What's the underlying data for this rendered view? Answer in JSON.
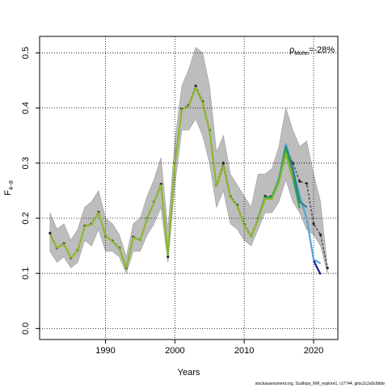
{
  "chart_data": {
    "type": "line",
    "xlabel": "Years",
    "ylabel_main": "F",
    "ylabel_sub": "4−8",
    "xlim": [
      1980.5,
      2023.5
    ],
    "ylim": [
      -0.02,
      0.53
    ],
    "xticks": [
      1990,
      2000,
      2010,
      2020
    ],
    "yticks": [
      0.0,
      0.1,
      0.2,
      0.3,
      0.4,
      0.5
    ],
    "ytick_labels": [
      "0.0",
      "0.1",
      "0.2",
      "0.3",
      "0.4",
      "0.5"
    ],
    "grid": "dotted",
    "annotation": {
      "rho_symbol": "ρ",
      "rho_sub": "Mohn",
      "rho_value": "=-28%"
    },
    "confidence_band": {
      "x": [
        1982,
        1983,
        1984,
        1985,
        1986,
        1987,
        1988,
        1989,
        1990,
        1991,
        1992,
        1993,
        1994,
        1995,
        1996,
        1997,
        1998,
        1999,
        2000,
        2001,
        2002,
        2003,
        2004,
        2005,
        2006,
        2007,
        2008,
        2009,
        2010,
        2011,
        2012,
        2013,
        2014,
        2015,
        2016,
        2017,
        2018,
        2019,
        2020,
        2021,
        2022
      ],
      "lower": [
        0.14,
        0.12,
        0.13,
        0.11,
        0.12,
        0.16,
        0.15,
        0.18,
        0.14,
        0.14,
        0.13,
        0.1,
        0.14,
        0.14,
        0.17,
        0.19,
        0.22,
        0.12,
        0.26,
        0.36,
        0.36,
        0.38,
        0.35,
        0.3,
        0.22,
        0.25,
        0.19,
        0.18,
        0.16,
        0.15,
        0.18,
        0.21,
        0.21,
        0.23,
        0.27,
        0.23,
        0.21,
        0.18,
        0.17,
        0.15,
        0.1
      ],
      "upper": [
        0.21,
        0.18,
        0.19,
        0.16,
        0.18,
        0.22,
        0.23,
        0.25,
        0.2,
        0.19,
        0.17,
        0.13,
        0.19,
        0.2,
        0.24,
        0.27,
        0.31,
        0.18,
        0.34,
        0.44,
        0.47,
        0.51,
        0.5,
        0.44,
        0.32,
        0.35,
        0.28,
        0.26,
        0.24,
        0.22,
        0.28,
        0.28,
        0.29,
        0.33,
        0.4,
        0.36,
        0.33,
        0.34,
        0.28,
        0.23,
        0.11
      ]
    },
    "series": [
      {
        "color": "#555555",
        "style": "dashed-points",
        "x": [
          1982,
          1983,
          1984,
          1985,
          1986,
          1987,
          1988,
          1989,
          1990,
          1991,
          1992,
          1993,
          1994,
          1995,
          1996,
          1997,
          1998,
          1999,
          2000,
          2001,
          2002,
          2003,
          2004,
          2005,
          2006,
          2007,
          2008,
          2009,
          2010,
          2011,
          2012,
          2013,
          2014,
          2015,
          2016,
          2017,
          2018,
          2019,
          2020,
          2021,
          2022
        ],
        "values": [
          0.173,
          0.146,
          0.154,
          0.128,
          0.142,
          0.186,
          0.19,
          0.211,
          0.168,
          0.159,
          0.146,
          0.11,
          0.166,
          0.161,
          0.2,
          0.23,
          0.262,
          0.13,
          0.3,
          0.398,
          0.405,
          0.44,
          0.412,
          0.36,
          0.26,
          0.3,
          0.24,
          0.224,
          0.189,
          0.168,
          0.2,
          0.24,
          0.24,
          0.27,
          0.33,
          0.3,
          0.267,
          0.263,
          0.19,
          0.17,
          0.11
        ]
      },
      {
        "color": "#4fa8d8",
        "x": [
          2014,
          2015,
          2016,
          2017,
          2018,
          2019,
          2020,
          2021
        ],
        "values": [
          0.24,
          0.27,
          0.335,
          0.29,
          0.24,
          0.2,
          0.125,
          0.118
        ]
      },
      {
        "color": "#1f1f8f",
        "x": [
          2020,
          2021
        ],
        "values": [
          0.123,
          0.098
        ]
      },
      {
        "color": "#2e7f8a",
        "x": [
          2013,
          2014,
          2015,
          2016,
          2017,
          2018,
          2019
        ],
        "values": [
          0.238,
          0.238,
          0.27,
          0.33,
          0.29,
          0.23,
          0.22
        ]
      },
      {
        "color": "#2aa84a",
        "x": [
          2012,
          2013,
          2014,
          2015,
          2016,
          2017,
          2018
        ],
        "values": [
          0.2,
          0.238,
          0.238,
          0.27,
          0.325,
          0.275,
          0.218
        ]
      },
      {
        "color": "#8db82d",
        "x": [
          1982,
          1983,
          1984,
          1985,
          1986,
          1987,
          1988,
          1989,
          1990,
          1991,
          1992,
          1993,
          1994,
          1995,
          1996,
          1997,
          1998,
          1999,
          2000,
          2001,
          2002,
          2003,
          2004,
          2005,
          2006,
          2007,
          2008,
          2009,
          2010,
          2011,
          2012,
          2013,
          2014,
          2015,
          2016,
          2017
        ],
        "values": [
          0.17,
          0.146,
          0.153,
          0.128,
          0.141,
          0.185,
          0.189,
          0.21,
          0.168,
          0.158,
          0.145,
          0.11,
          0.165,
          0.16,
          0.199,
          0.229,
          0.26,
          0.135,
          0.298,
          0.397,
          0.403,
          0.437,
          0.409,
          0.358,
          0.258,
          0.295,
          0.238,
          0.222,
          0.187,
          0.166,
          0.198,
          0.235,
          0.235,
          0.265,
          0.317,
          0.27
        ]
      }
    ]
  },
  "footer": "stockassessment.org, Scallops_NW_explore1, r17744, gitsc2c2a0c8dde"
}
